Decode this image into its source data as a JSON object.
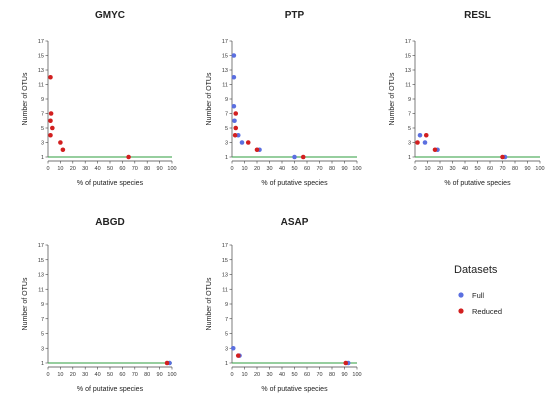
{
  "chart_data": [
    {
      "type": "scatter",
      "title": "GMYC",
      "xlabel": "% of putative species",
      "ylabel": "Number of OTUs",
      "xlim": [
        0,
        100
      ],
      "ylim": [
        1,
        17
      ],
      "xticks": [
        0,
        10,
        20,
        30,
        40,
        50,
        60,
        70,
        80,
        90,
        100
      ],
      "yticks": [
        1,
        3,
        5,
        7,
        9,
        11,
        13,
        15,
        17
      ],
      "reference_line": {
        "y": 1,
        "color": "#2e9e3e"
      },
      "grid": false,
      "series": [
        {
          "name": "Full",
          "color": "#5b6fe0",
          "points": []
        },
        {
          "name": "Reduced",
          "color": "#d21f1f",
          "points": [
            [
              2,
              12
            ],
            [
              2.5,
              7
            ],
            [
              2,
              6
            ],
            [
              3.5,
              5
            ],
            [
              2,
              4
            ],
            [
              10,
              3
            ],
            [
              12,
              2
            ],
            [
              65,
              1
            ]
          ]
        }
      ]
    },
    {
      "type": "scatter",
      "title": "PTP",
      "xlabel": "% of putative species",
      "ylabel": "Number of OTUs",
      "xlim": [
        0,
        100
      ],
      "ylim": [
        1,
        17
      ],
      "xticks": [
        0,
        10,
        20,
        30,
        40,
        50,
        60,
        70,
        80,
        90,
        100
      ],
      "yticks": [
        1,
        3,
        5,
        7,
        9,
        11,
        13,
        15,
        17
      ],
      "reference_line": {
        "y": 1,
        "color": "#2e9e3e"
      },
      "grid": false,
      "series": [
        {
          "name": "Full",
          "color": "#5b6fe0",
          "points": [
            [
              1.5,
              15
            ],
            [
              1.5,
              12
            ],
            [
              1.5,
              8
            ],
            [
              2,
              6
            ],
            [
              5,
              4
            ],
            [
              8,
              3
            ],
            [
              22,
              2
            ],
            [
              50,
              1
            ]
          ]
        },
        {
          "name": "Reduced",
          "color": "#d21f1f",
          "points": [
            [
              3,
              7
            ],
            [
              3,
              5
            ],
            [
              2.5,
              4
            ],
            [
              13,
              3
            ],
            [
              20,
              2
            ],
            [
              57,
              1
            ]
          ]
        }
      ]
    },
    {
      "type": "scatter",
      "title": "RESL",
      "xlabel": "% of putative species",
      "ylabel": "Number of OTUs",
      "xlim": [
        0,
        100
      ],
      "ylim": [
        1,
        17
      ],
      "xticks": [
        0,
        10,
        20,
        30,
        40,
        50,
        60,
        70,
        80,
        90,
        100
      ],
      "yticks": [
        1,
        3,
        5,
        7,
        9,
        11,
        13,
        15,
        17
      ],
      "reference_line": {
        "y": 1,
        "color": "#2e9e3e"
      },
      "grid": false,
      "series": [
        {
          "name": "Full",
          "color": "#5b6fe0",
          "points": [
            [
              4,
              4
            ],
            [
              8,
              3
            ],
            [
              18,
              2
            ],
            [
              72,
              1
            ]
          ]
        },
        {
          "name": "Reduced",
          "color": "#d21f1f",
          "points": [
            [
              9,
              4
            ],
            [
              2,
              3
            ],
            [
              16,
              2
            ],
            [
              70,
              1
            ]
          ]
        }
      ]
    },
    {
      "type": "scatter",
      "title": "ABGD",
      "xlabel": "% of putative species",
      "ylabel": "Number of OTUs",
      "xlim": [
        0,
        100
      ],
      "ylim": [
        1,
        17
      ],
      "xticks": [
        0,
        10,
        20,
        30,
        40,
        50,
        60,
        70,
        80,
        90,
        100
      ],
      "yticks": [
        1,
        3,
        5,
        7,
        9,
        11,
        13,
        15,
        17
      ],
      "reference_line": {
        "y": 1,
        "color": "#2e9e3e"
      },
      "grid": false,
      "series": [
        {
          "name": "Full",
          "color": "#5b6fe0",
          "points": [
            [
              98,
              1
            ]
          ]
        },
        {
          "name": "Reduced",
          "color": "#d21f1f",
          "points": [
            [
              96,
              1
            ]
          ]
        }
      ]
    },
    {
      "type": "scatter",
      "title": "ASAP",
      "xlabel": "% of putative species",
      "ylabel": "Number of OTUs",
      "xlim": [
        0,
        100
      ],
      "ylim": [
        1,
        17
      ],
      "xticks": [
        0,
        10,
        20,
        30,
        40,
        50,
        60,
        70,
        80,
        90,
        100
      ],
      "yticks": [
        1,
        3,
        5,
        7,
        9,
        11,
        13,
        15,
        17
      ],
      "reference_line": {
        "y": 1,
        "color": "#2e9e3e"
      },
      "grid": false,
      "series": [
        {
          "name": "Full",
          "color": "#5b6fe0",
          "points": [
            [
              1,
              3
            ],
            [
              6,
              2
            ],
            [
              93,
              1
            ]
          ]
        },
        {
          "name": "Reduced",
          "color": "#d21f1f",
          "points": [
            [
              5,
              2
            ],
            [
              91,
              1
            ]
          ]
        }
      ]
    }
  ],
  "legend": {
    "title": "Datasets",
    "placement": "bottom-right",
    "items": [
      {
        "label": "Full",
        "color": "#5b6fe0"
      },
      {
        "label": "Reduced",
        "color": "#d21f1f"
      }
    ]
  }
}
